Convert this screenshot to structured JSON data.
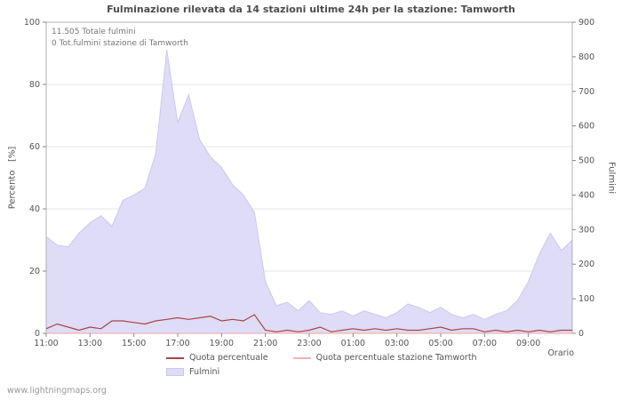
{
  "title": "Fulminazione rilevata da 14 stazioni ultime 24h per la stazione: Tamworth",
  "watermark": "www.lightningmaps.org",
  "annotations": [
    "11.505 Totale fulmini",
    "0 Tot.fulmini stazione di Tamworth"
  ],
  "colors": {
    "area": "#dedcf6",
    "area_edge": "#cbc9ee",
    "percent_line": "#aa4444",
    "tamworth_line": "#f0b4b4",
    "grid": "#e4e4e4",
    "axis": "#b0b0b0",
    "tick": "#888888",
    "text": "#555555"
  },
  "chart_data": {
    "type": "area+line",
    "title": "Fulminazione rilevata da 14 stazioni ultime 24h per la stazione: Tamworth",
    "xlabel": "Orario",
    "x_tick_labels": [
      "11:00",
      "13:00",
      "15:00",
      "17:00",
      "19:00",
      "21:00",
      "23:00",
      "01:00",
      "03:00",
      "05:00",
      "07:00",
      "09:00"
    ],
    "x_span_hours": 24,
    "x_tick_step_hours": 2,
    "grid": true,
    "legend_position": "bottom",
    "left_axis": {
      "label": "Percento   [%]",
      "range": [
        0,
        100
      ],
      "ticks": [
        0,
        20,
        40,
        60,
        80,
        100
      ]
    },
    "right_axis": {
      "label": "Fulmini",
      "range": [
        0,
        900
      ],
      "ticks": [
        0,
        100,
        200,
        300,
        400,
        500,
        600,
        700,
        800,
        900
      ]
    },
    "times": [
      "11:00",
      "11:30",
      "12:00",
      "12:30",
      "13:00",
      "13:30",
      "14:00",
      "14:30",
      "15:00",
      "15:30",
      "16:00",
      "16:30",
      "17:00",
      "17:30",
      "18:00",
      "18:30",
      "19:00",
      "19:30",
      "20:00",
      "20:30",
      "21:00",
      "21:30",
      "22:00",
      "22:30",
      "23:00",
      "23:30",
      "00:00",
      "00:30",
      "01:00",
      "01:30",
      "02:00",
      "02:30",
      "03:00",
      "03:30",
      "04:00",
      "04:30",
      "05:00",
      "05:30",
      "06:00",
      "06:30",
      "07:00",
      "07:30",
      "08:00",
      "08:30",
      "09:00",
      "09:30",
      "10:00",
      "10:30",
      "11:00"
    ],
    "series": [
      {
        "name": "Fulmini",
        "style": "area",
        "axis": "right",
        "color": "#dedcf6",
        "values": [
          280,
          255,
          250,
          290,
          320,
          340,
          310,
          385,
          400,
          420,
          520,
          820,
          610,
          690,
          560,
          510,
          480,
          430,
          400,
          350,
          150,
          80,
          90,
          65,
          95,
          60,
          55,
          65,
          50,
          65,
          55,
          45,
          60,
          85,
          75,
          60,
          75,
          55,
          45,
          55,
          40,
          55,
          65,
          95,
          150,
          230,
          290,
          240,
          270
        ]
      },
      {
        "name": "Quota percentuale",
        "style": "line",
        "axis": "left",
        "color": "#aa4444",
        "values": [
          1.5,
          3,
          2,
          1,
          2,
          1.5,
          4,
          4,
          3.5,
          3,
          4,
          4.5,
          5,
          4.5,
          5,
          5.5,
          4,
          4.5,
          4,
          6,
          1,
          0.5,
          1,
          0.5,
          1,
          2,
          0.5,
          1,
          1.5,
          1,
          1.5,
          1,
          1.5,
          1,
          1,
          1.5,
          2,
          1,
          1.5,
          1.5,
          0.5,
          1,
          0.5,
          1,
          0.5,
          1,
          0.5,
          1,
          1
        ]
      },
      {
        "name": "Quota percentuale stazione Tamworth",
        "style": "line",
        "axis": "left",
        "color": "#f0b4b4",
        "values": [
          0,
          0,
          0,
          0,
          0,
          0,
          0,
          0,
          0,
          0,
          0,
          0,
          0,
          0,
          0,
          0,
          0,
          0,
          0,
          0,
          0,
          0,
          0,
          0,
          0,
          0,
          0,
          0,
          0,
          0,
          0,
          0,
          0,
          0,
          0,
          0,
          0,
          0,
          0,
          0,
          0,
          0,
          0,
          0,
          0,
          0,
          0,
          0,
          0
        ]
      }
    ]
  }
}
